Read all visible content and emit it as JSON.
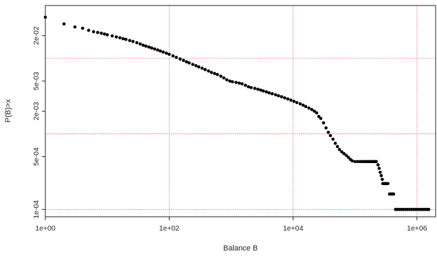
{
  "chart_data": {
    "type": "scatter",
    "title": "",
    "xlabel": "Balance B",
    "ylabel": "P(B)>x",
    "x_scale": "log",
    "y_scale": "log",
    "xlim": [
      1,
      2000000
    ],
    "ylim": [
      8e-05,
      0.05
    ],
    "x_ticks": [
      {
        "value": 1,
        "label": "1e+00"
      },
      {
        "value": 100,
        "label": "1e+02"
      },
      {
        "value": 10000,
        "label": "1e+04"
      },
      {
        "value": 1000000,
        "label": "1e+06"
      }
    ],
    "y_ticks": [
      {
        "value": 0.0001,
        "label": "1e-04"
      },
      {
        "value": 0.0005,
        "label": "5e-04"
      },
      {
        "value": 0.002,
        "label": "2e-03"
      },
      {
        "value": 0.005,
        "label": "5e-03"
      },
      {
        "value": 0.02,
        "label": "2e-02"
      }
    ],
    "gridlines_x": [
      1,
      100,
      10000,
      1000000
    ],
    "gridlines_y": [
      0.0001,
      0.001,
      0.01
    ],
    "grid": true,
    "grid_color": "#e8585f",
    "point_color": "#000000",
    "series": [
      {
        "points": [
          [
            1,
            0.035
          ],
          [
            2,
            0.0285
          ],
          [
            3,
            0.026
          ],
          [
            4,
            0.025
          ],
          [
            5,
            0.0235
          ],
          [
            6,
            0.0225
          ],
          [
            7,
            0.022
          ],
          [
            8,
            0.0215
          ],
          [
            9,
            0.021
          ],
          [
            10,
            0.0205
          ],
          [
            12,
            0.0198
          ],
          [
            14,
            0.0192
          ],
          [
            16,
            0.0187
          ],
          [
            18,
            0.0182
          ],
          [
            20,
            0.0178
          ],
          [
            23,
            0.0172
          ],
          [
            26,
            0.0167
          ],
          [
            30,
            0.0161
          ],
          [
            34,
            0.0155
          ],
          [
            38,
            0.0149
          ],
          [
            42,
            0.0145
          ],
          [
            47,
            0.0141
          ],
          [
            52,
            0.0137
          ],
          [
            58,
            0.0133
          ],
          [
            65,
            0.0129
          ],
          [
            72,
            0.0125
          ],
          [
            80,
            0.0121
          ],
          [
            90,
            0.0117
          ],
          [
            100,
            0.0113
          ],
          [
            115,
            0.0108
          ],
          [
            130,
            0.0103
          ],
          [
            150,
            0.0098
          ],
          [
            170,
            0.0094
          ],
          [
            190,
            0.009
          ],
          [
            210,
            0.0087
          ],
          [
            240,
            0.0083
          ],
          [
            270,
            0.008
          ],
          [
            300,
            0.0077
          ],
          [
            340,
            0.0074
          ],
          [
            380,
            0.0071
          ],
          [
            430,
            0.0068
          ],
          [
            480,
            0.0065
          ],
          [
            540,
            0.0063
          ],
          [
            600,
            0.0061
          ],
          [
            680,
            0.0058
          ],
          [
            760,
            0.0055
          ],
          [
            850,
            0.0052
          ],
          [
            950,
            0.005
          ],
          [
            1050,
            0.0049
          ],
          [
            1200,
            0.0048
          ],
          [
            1350,
            0.0047
          ],
          [
            1500,
            0.0046
          ],
          [
            1700,
            0.0044
          ],
          [
            1900,
            0.0042
          ],
          [
            2100,
            0.0041
          ],
          [
            2400,
            0.004
          ],
          [
            2700,
            0.0039
          ],
          [
            3000,
            0.0038
          ],
          [
            3300,
            0.0037
          ],
          [
            3700,
            0.0036
          ],
          [
            4100,
            0.0035
          ],
          [
            4600,
            0.0034
          ],
          [
            5200,
            0.0033
          ],
          [
            5800,
            0.0032
          ],
          [
            6500,
            0.0031
          ],
          [
            7300,
            0.003
          ],
          [
            8200,
            0.0029
          ],
          [
            9200,
            0.0028
          ],
          [
            10300,
            0.0027
          ],
          [
            11500,
            0.0026
          ],
          [
            13000,
            0.0025
          ],
          [
            14500,
            0.0024
          ],
          [
            16000,
            0.0023
          ],
          [
            18000,
            0.0022
          ],
          [
            20000,
            0.0021
          ],
          [
            22000,
            0.002
          ],
          [
            24000,
            0.0019
          ],
          [
            26000,
            0.0017
          ],
          [
            28000,
            0.0016
          ],
          [
            31000,
            0.0014
          ],
          [
            34000,
            0.0012
          ],
          [
            37000,
            0.00105
          ],
          [
            40000,
            0.00095
          ],
          [
            44000,
            0.00085
          ],
          [
            48000,
            0.00075
          ],
          [
            52000,
            0.00068
          ],
          [
            56000,
            0.00062
          ],
          [
            61000,
            0.00058
          ],
          [
            66000,
            0.00055
          ],
          [
            72000,
            0.00052
          ],
          [
            78000,
            0.00049
          ],
          [
            84000,
            0.00046
          ],
          [
            90000,
            0.00044
          ],
          [
            100000,
            0.00043
          ],
          [
            110000,
            0.00043
          ],
          [
            120000,
            0.00043
          ],
          [
            130000,
            0.00043
          ],
          [
            140000,
            0.00043
          ],
          [
            150000,
            0.00043
          ],
          [
            160000,
            0.00043
          ],
          [
            170000,
            0.00043
          ],
          [
            180000,
            0.00043
          ],
          [
            190000,
            0.00043
          ],
          [
            200000,
            0.00043
          ],
          [
            210000,
            0.00043
          ],
          [
            220000,
            0.00043
          ],
          [
            235000,
            0.00039
          ],
          [
            245000,
            0.00035
          ],
          [
            255000,
            0.00031
          ],
          [
            265000,
            0.00028
          ],
          [
            275000,
            0.00025
          ],
          [
            280000,
            0.00022
          ],
          [
            290000,
            0.00022
          ],
          [
            300000,
            0.00022
          ],
          [
            310000,
            0.00022
          ],
          [
            320000,
            0.00022
          ],
          [
            340000,
            0.00022
          ],
          [
            360000,
            0.00016
          ],
          [
            380000,
            0.00016
          ],
          [
            400000,
            0.00016
          ],
          [
            420000,
            0.00016
          ],
          [
            450000,
            0.0001
          ],
          [
            480000,
            0.0001
          ],
          [
            520000,
            0.0001
          ],
          [
            560000,
            0.0001
          ],
          [
            600000,
            0.0001
          ],
          [
            650000,
            0.0001
          ],
          [
            700000,
            0.0001
          ],
          [
            760000,
            0.0001
          ],
          [
            820000,
            0.0001
          ],
          [
            880000,
            0.0001
          ],
          [
            950000,
            0.0001
          ],
          [
            1020000,
            0.0001
          ],
          [
            1100000,
            0.0001
          ],
          [
            1180000,
            0.0001
          ],
          [
            1260000,
            0.0001
          ],
          [
            1350000,
            0.0001
          ],
          [
            1450000,
            0.0001
          ],
          [
            1550000,
            0.0001
          ]
        ]
      }
    ]
  }
}
